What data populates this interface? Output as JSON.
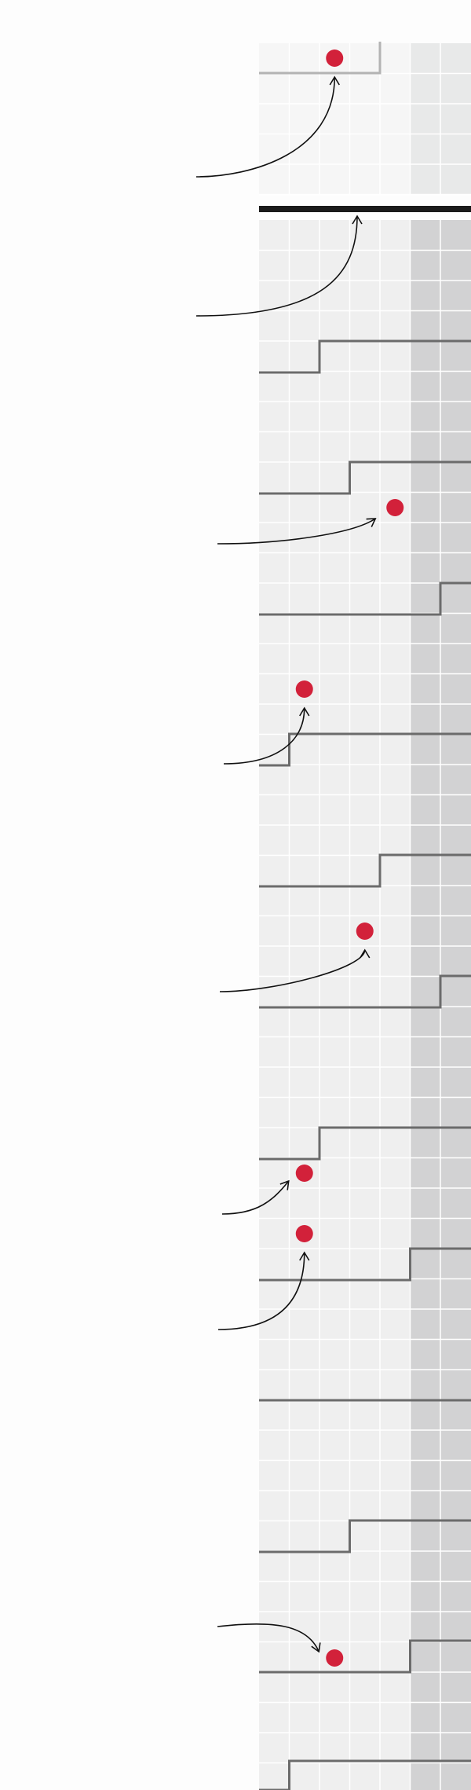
{
  "colors": {
    "background": "#fdfdfd",
    "grid_cell": "#efefef",
    "grid_cell_faded": "#f6f6f6",
    "grid_column_shaded": "#d2d2d3",
    "grid_column_shaded_faded": "#e8e9e9",
    "grid_lines": "#ffffff",
    "step_line": "#6b6b6b",
    "step_line_faded": "#b3b3b3",
    "divider": "#1a1a1a",
    "marker": "#d2213a",
    "arrow": "#111111"
  },
  "grid": {
    "columns": 7,
    "shaded_columns": [
      6,
      7
    ],
    "faded_top_band": true
  },
  "rows": [
    {
      "id": "r0",
      "step_at_column": 4,
      "marker_column": 3,
      "marker_placement": "above",
      "faded": true,
      "arrow": true
    },
    {
      "id": "r1",
      "step_at_column": null,
      "marker_column": null,
      "divider": true,
      "arrow": true
    },
    {
      "id": "r2",
      "step_at_column": 2,
      "marker_column": null,
      "arrow": false
    },
    {
      "id": "r3",
      "step_at_column": 3,
      "marker_column": 5,
      "marker_placement": "below",
      "arrow": true
    },
    {
      "id": "r4",
      "step_at_column": 6,
      "marker_column": null,
      "arrow": false
    },
    {
      "id": "r5",
      "step_at_column": 1,
      "marker_column": 2,
      "marker_placement": "above",
      "arrow": true
    },
    {
      "id": "r6",
      "step_at_column": 4,
      "marker_column": null,
      "arrow": false
    },
    {
      "id": "r7",
      "step_at_column": 6,
      "marker_column": 4,
      "marker_placement": "above",
      "arrow": true
    },
    {
      "id": "r8",
      "step_at_column": 2,
      "marker_column": 2,
      "marker_placement": "below",
      "arrow": true
    },
    {
      "id": "r9",
      "step_at_column": 5,
      "marker_column": 2,
      "marker_placement": "above",
      "arrow": true
    },
    {
      "id": "r10",
      "step_at_column": 0,
      "marker_column": null,
      "arrow": false
    },
    {
      "id": "r11",
      "step_at_column": 3,
      "marker_column": null,
      "arrow": false
    },
    {
      "id": "r12",
      "step_at_column": 5,
      "marker_column": 3,
      "marker_placement": "above",
      "arrow": true
    },
    {
      "id": "r13",
      "step_at_column": 1,
      "marker_column": null,
      "arrow": false
    }
  ]
}
